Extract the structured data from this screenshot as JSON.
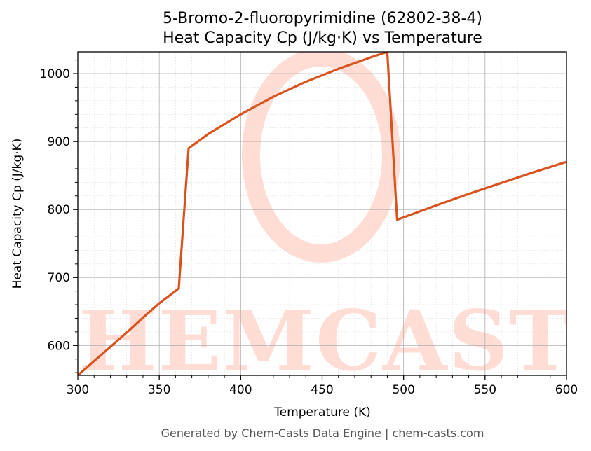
{
  "colors": {
    "line": "#d9531e",
    "watermark": "#ffd9d0",
    "grid_major": "#b0b0b0",
    "grid_minor": "#e0e0e0",
    "footer_text": "#555555"
  },
  "watermark": {
    "text": "CHEMCASTS"
  },
  "footer": "Generated by Chem-Casts Data Engine | chem-casts.com",
  "chart_data": {
    "type": "line",
    "title_line1": "5-Bromo-2-fluoropyrimidine (62802-38-4)",
    "title_line2": "Heat Capacity Cp (J/kg·K) vs Temperature",
    "xlabel": "Temperature (K)",
    "ylabel": "Heat Capacity Cp (J/kg·K)",
    "xlim": [
      300,
      600
    ],
    "ylim": [
      556,
      1032
    ],
    "xticks": [
      300,
      350,
      400,
      450,
      500,
      550,
      600
    ],
    "yticks": [
      600,
      700,
      800,
      900,
      1000
    ],
    "grid": true,
    "series": [
      {
        "x": [
          300,
          310,
          320,
          330,
          340,
          350,
          362,
          368,
          380,
          400,
          420,
          440,
          460,
          480,
          490,
          496,
          520,
          540,
          560,
          580,
          600
        ],
        "y": [
          556,
          577,
          598,
          619,
          641,
          662,
          684,
          890,
          911,
          940,
          966,
          988,
          1007,
          1024,
          1032,
          785,
          806,
          823,
          839,
          855,
          870
        ]
      }
    ]
  }
}
